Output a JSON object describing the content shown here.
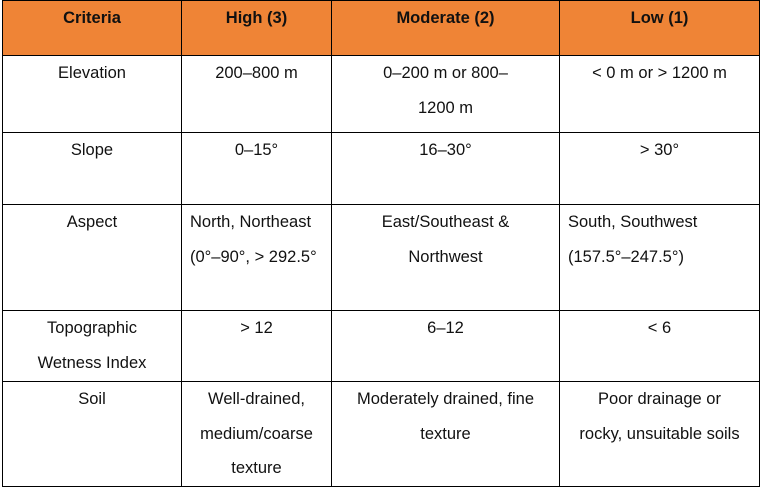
{
  "table": {
    "headers": [
      "Criteria",
      "High (3)",
      "Moderate (2)",
      "Low (1)"
    ],
    "header_color": "#ef8436",
    "rows": [
      {
        "criteria": "Elevation",
        "high": "200–800 m",
        "moderate": "0–200 m or 800–1200 m",
        "low": "< 0 m or > 1200 m"
      },
      {
        "criteria": "Slope",
        "high": "0–15°",
        "moderate": "16–30°",
        "low": "> 30°"
      },
      {
        "criteria": "Aspect",
        "high": "North, Northeast (0°–90°, > 292.5°",
        "moderate": "East/Southeast & Northwest",
        "low": "South, Southwest (157.5°–247.5°)"
      },
      {
        "criteria": "Topographic Wetness Index",
        "high": "> 12",
        "moderate": "6–12",
        "low": "< 6"
      },
      {
        "criteria": "Soil",
        "high": "Well-drained, medium/coarse texture",
        "moderate": "Moderately drained, fine texture",
        "low": "Poor drainage or rocky, unsuitable soils"
      }
    ]
  }
}
